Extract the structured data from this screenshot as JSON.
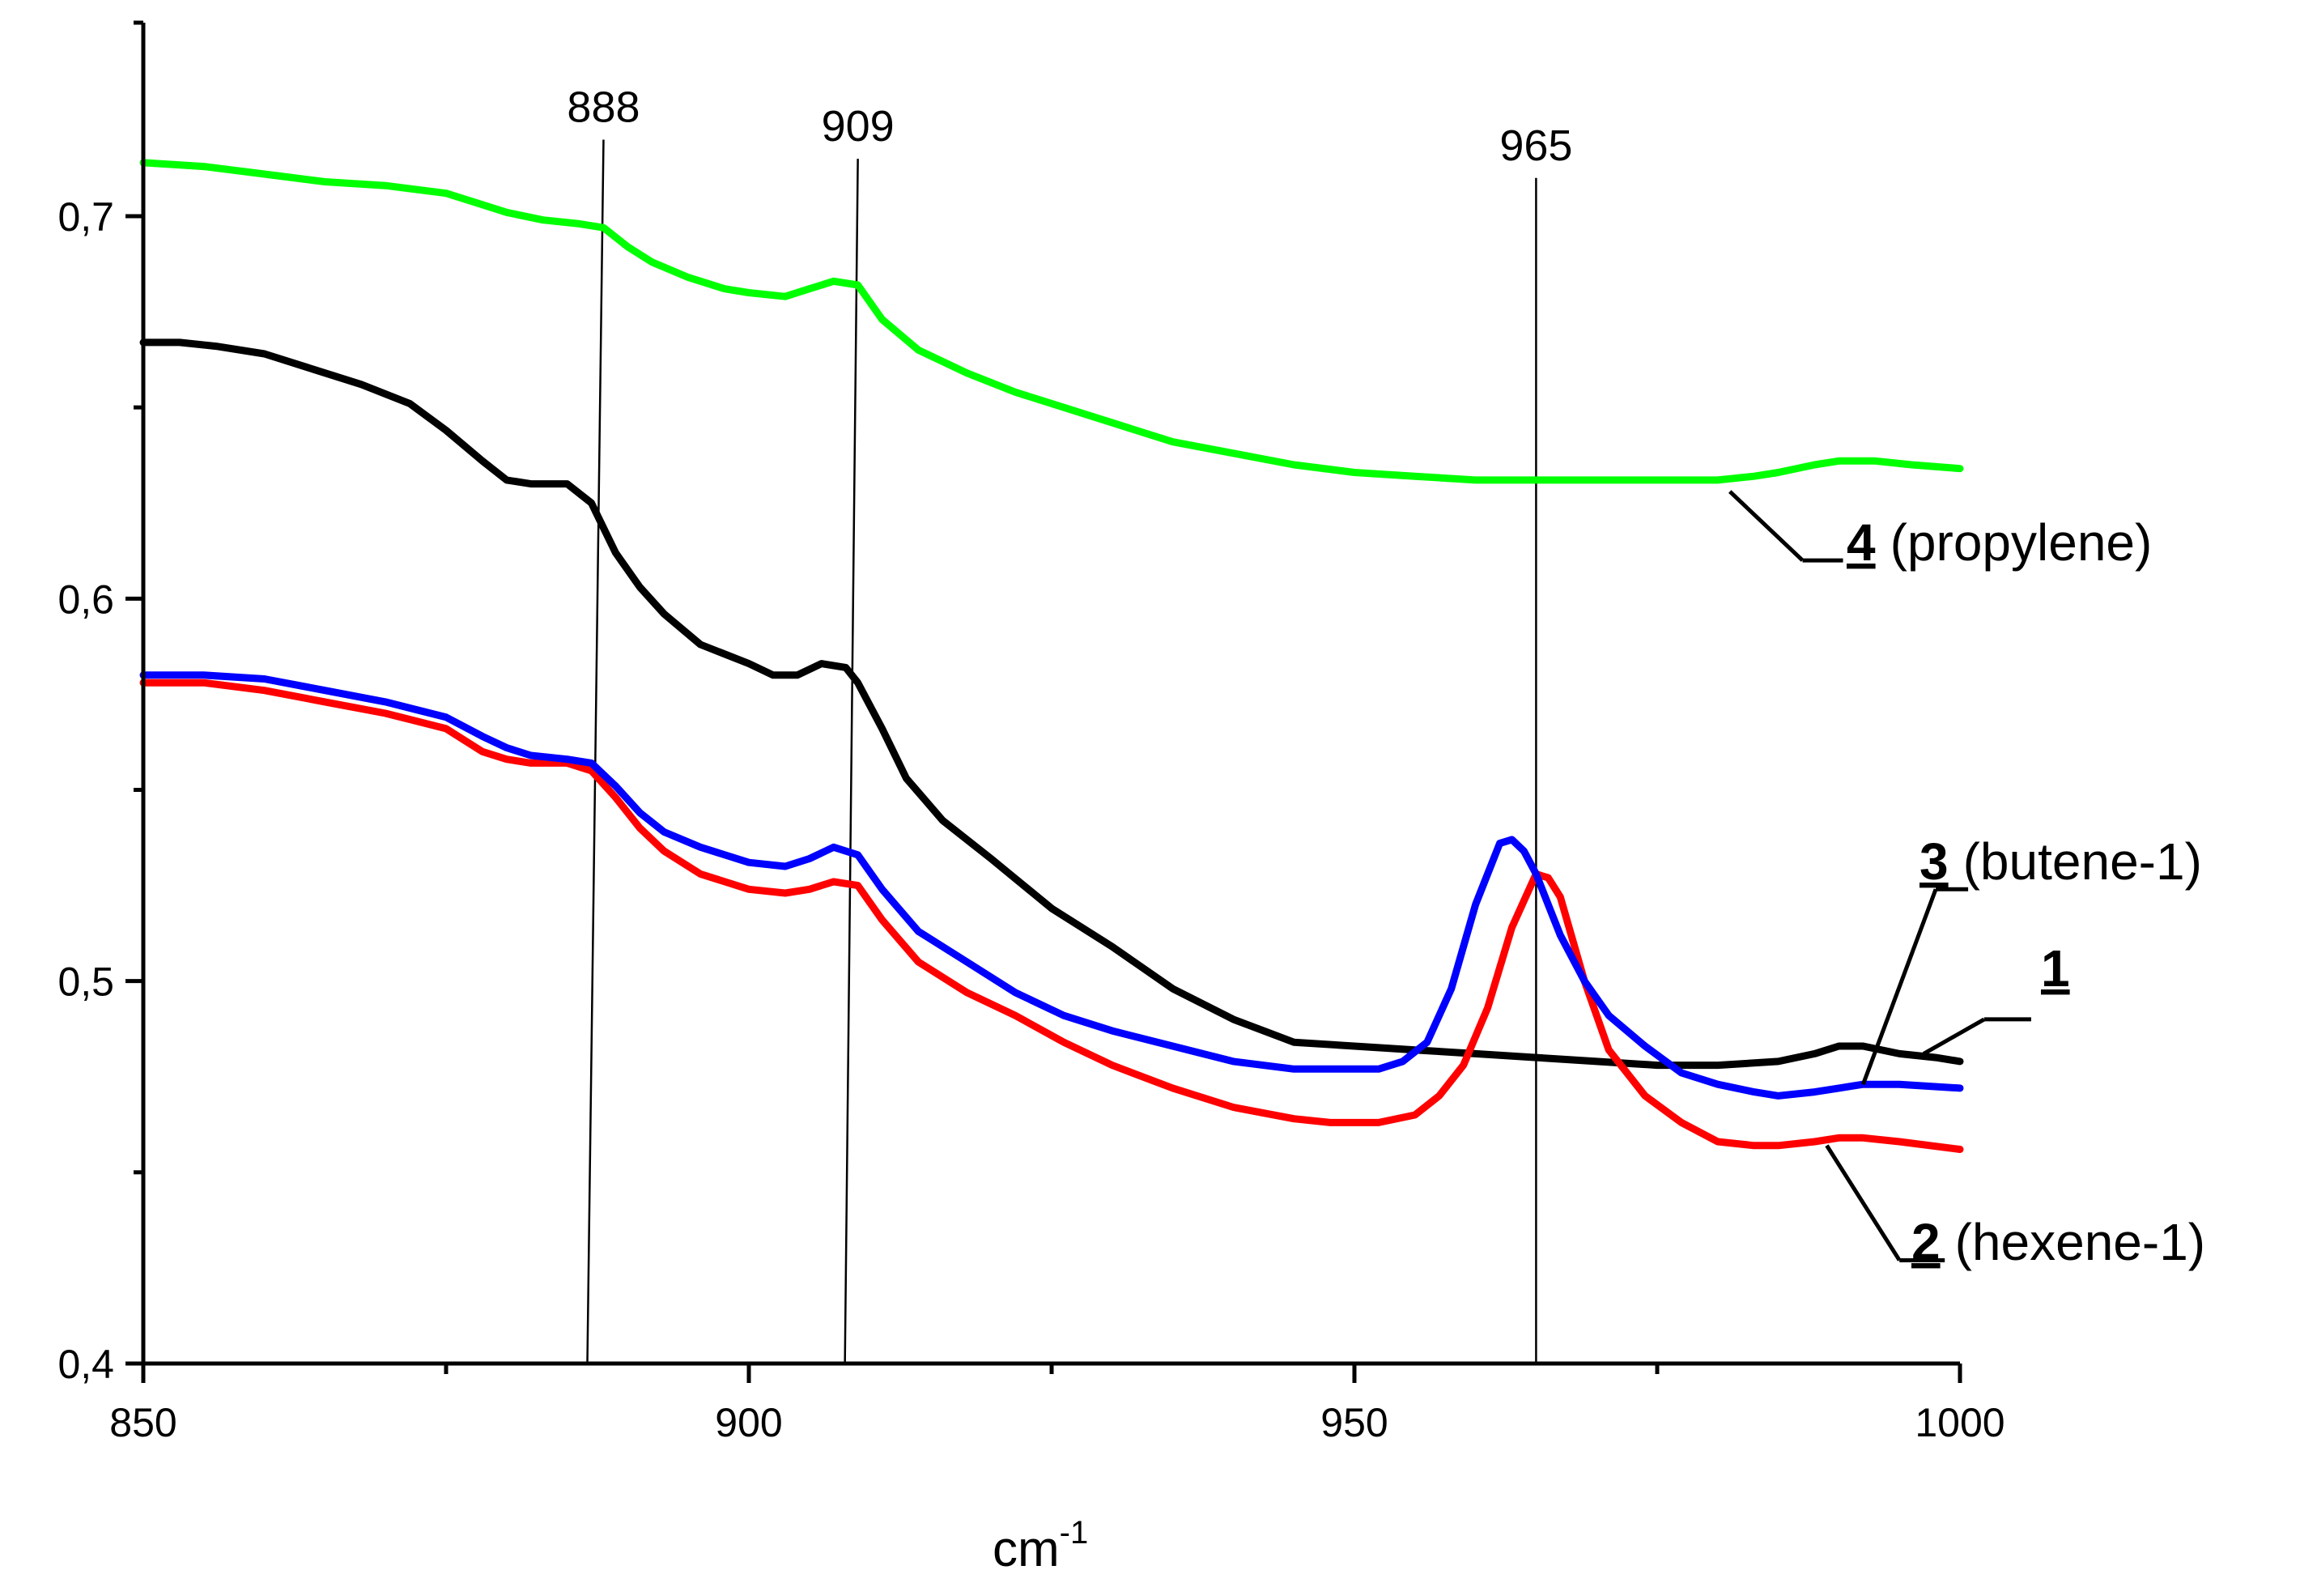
{
  "chart_data": {
    "type": "line",
    "title": "",
    "xlabel": "cm",
    "xlabel_superscript": "-1",
    "ylabel": "",
    "xlim": [
      850,
      1000
    ],
    "ylim": [
      0.4,
      0.75
    ],
    "grid": false,
    "x_ticks": [
      850,
      900,
      950,
      1000
    ],
    "x_tick_labels": [
      "850",
      "900",
      "950",
      "1000"
    ],
    "x_minor_ticks": [
      875,
      925,
      975
    ],
    "y_ticks": [
      0.4,
      0.5,
      0.6,
      0.7
    ],
    "y_tick_labels": [
      "0,4",
      "0,5",
      "0,6",
      "0,7"
    ],
    "y_minor_ticks": [
      0.45,
      0.55,
      0.65
    ],
    "markers": [
      {
        "label": "888",
        "x": 888,
        "top_value": 0.72
      },
      {
        "label": "909",
        "x": 909,
        "top_value": 0.715
      },
      {
        "label": "965",
        "x": 965,
        "top_value": 0.71
      }
    ],
    "series": [
      {
        "id": "1",
        "name": "1",
        "suffix": "",
        "color": "#000000",
        "x": [
          850,
          853,
          856,
          860,
          864,
          868,
          872,
          875,
          878,
          880,
          882,
          885,
          887,
          889,
          891,
          893,
          896,
          900,
          902,
          904,
          906,
          908,
          909,
          911,
          913,
          916,
          920,
          925,
          930,
          935,
          940,
          945,
          950,
          955,
          960,
          965,
          970,
          975,
          980,
          985,
          988,
          990,
          992,
          995,
          998,
          1000
        ],
        "y": [
          0.667,
          0.667,
          0.666,
          0.664,
          0.66,
          0.656,
          0.651,
          0.644,
          0.636,
          0.631,
          0.63,
          0.63,
          0.625,
          0.612,
          0.603,
          0.596,
          0.588,
          0.583,
          0.58,
          0.58,
          0.583,
          0.582,
          0.578,
          0.566,
          0.553,
          0.542,
          0.532,
          0.519,
          0.509,
          0.498,
          0.49,
          0.484,
          0.483,
          0.482,
          0.481,
          0.48,
          0.479,
          0.478,
          0.478,
          0.479,
          0.481,
          0.483,
          0.483,
          0.481,
          0.48,
          0.479
        ]
      },
      {
        "id": "2",
        "name": "2",
        "suffix": "(hexene-1)",
        "color": "#ff0000",
        "x": [
          850,
          855,
          860,
          865,
          870,
          875,
          878,
          880,
          882,
          885,
          887,
          889,
          891,
          893,
          896,
          900,
          903,
          905,
          907,
          909,
          911,
          914,
          918,
          922,
          926,
          930,
          935,
          940,
          945,
          948,
          950,
          952,
          955,
          957,
          959,
          961,
          963,
          965,
          966,
          967,
          969,
          971,
          974,
          977,
          980,
          983,
          985,
          988,
          990,
          992,
          995,
          1000
        ],
        "y": [
          0.578,
          0.578,
          0.576,
          0.573,
          0.57,
          0.566,
          0.56,
          0.558,
          0.557,
          0.557,
          0.555,
          0.548,
          0.54,
          0.534,
          0.528,
          0.524,
          0.523,
          0.524,
          0.526,
          0.525,
          0.516,
          0.505,
          0.497,
          0.491,
          0.484,
          0.478,
          0.472,
          0.467,
          0.464,
          0.463,
          0.463,
          0.463,
          0.465,
          0.47,
          0.478,
          0.493,
          0.514,
          0.528,
          0.527,
          0.522,
          0.5,
          0.482,
          0.47,
          0.463,
          0.458,
          0.457,
          0.457,
          0.458,
          0.459,
          0.459,
          0.458,
          0.456
        ]
      },
      {
        "id": "3",
        "name": "3",
        "suffix": "(butene-1)",
        "color": "#0000ff",
        "x": [
          850,
          855,
          860,
          865,
          870,
          875,
          878,
          880,
          882,
          885,
          887,
          889,
          891,
          893,
          896,
          900,
          903,
          905,
          907,
          909,
          911,
          914,
          918,
          922,
          926,
          930,
          935,
          940,
          945,
          948,
          950,
          952,
          954,
          956,
          958,
          960,
          962,
          963,
          964,
          965,
          967,
          969,
          971,
          974,
          977,
          980,
          983,
          985,
          988,
          990,
          992,
          995,
          1000
        ],
        "y": [
          0.58,
          0.58,
          0.579,
          0.576,
          0.573,
          0.569,
          0.564,
          0.561,
          0.559,
          0.558,
          0.557,
          0.551,
          0.544,
          0.539,
          0.535,
          0.531,
          0.53,
          0.532,
          0.535,
          0.533,
          0.524,
          0.513,
          0.505,
          0.497,
          0.491,
          0.487,
          0.483,
          0.479,
          0.477,
          0.477,
          0.477,
          0.477,
          0.479,
          0.484,
          0.498,
          0.52,
          0.536,
          0.537,
          0.534,
          0.528,
          0.512,
          0.5,
          0.491,
          0.483,
          0.476,
          0.473,
          0.471,
          0.47,
          0.471,
          0.472,
          0.473,
          0.473,
          0.472
        ]
      },
      {
        "id": "4",
        "name": "4",
        "suffix": "(propylene)",
        "color": "#00ff00",
        "x": [
          850,
          855,
          860,
          865,
          870,
          875,
          878,
          880,
          883,
          886,
          888,
          890,
          892,
          895,
          898,
          900,
          903,
          905,
          907,
          909,
          911,
          914,
          918,
          922,
          926,
          930,
          935,
          940,
          945,
          950,
          955,
          960,
          965,
          970,
          975,
          980,
          983,
          985,
          988,
          990,
          993,
          996,
          1000
        ],
        "y": [
          0.714,
          0.713,
          0.711,
          0.709,
          0.708,
          0.706,
          0.703,
          0.701,
          0.699,
          0.698,
          0.697,
          0.692,
          0.688,
          0.684,
          0.681,
          0.68,
          0.679,
          0.681,
          0.683,
          0.682,
          0.673,
          0.665,
          0.659,
          0.654,
          0.65,
          0.646,
          0.641,
          0.638,
          0.635,
          0.633,
          0.632,
          0.631,
          0.631,
          0.631,
          0.631,
          0.631,
          0.632,
          0.633,
          0.635,
          0.636,
          0.636,
          0.635,
          0.634
        ]
      }
    ],
    "callouts": [
      {
        "series": "4",
        "from": [
          981,
          0.628
        ],
        "to": [
          987,
          0.61
        ]
      },
      {
        "series": "3",
        "from": [
          992,
          0.473
        ],
        "to": [
          998,
          0.524
        ]
      },
      {
        "series": "1",
        "from": [
          997,
          0.481
        ],
        "to": [
          1002,
          0.49
        ]
      },
      {
        "series": "2",
        "from": [
          989,
          0.457
        ],
        "to": [
          995,
          0.427
        ]
      }
    ]
  }
}
